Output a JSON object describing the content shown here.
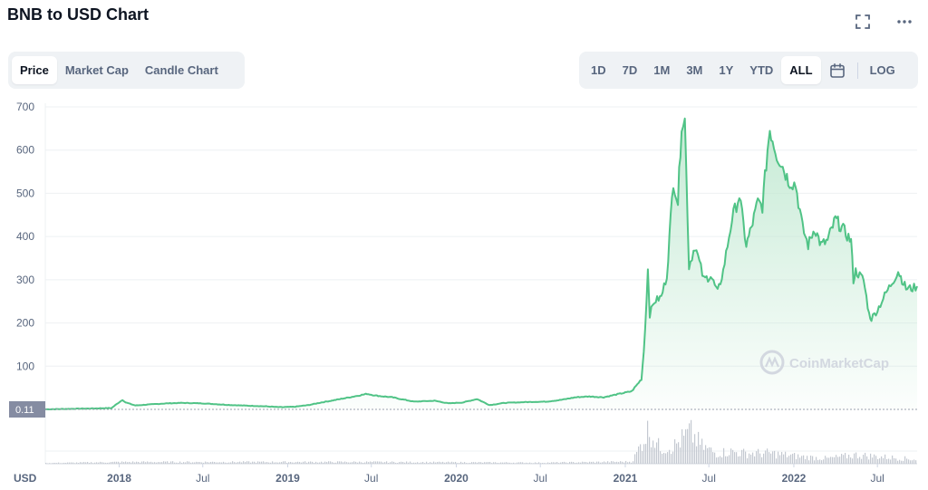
{
  "header": {
    "title": "BNB to USD Chart"
  },
  "top_icons": [
    "fullscreen-icon",
    "more-icon"
  ],
  "tabs_left": [
    {
      "label": "Price",
      "active": true
    },
    {
      "label": "Market Cap",
      "active": false
    },
    {
      "label": "Candle Chart",
      "active": false
    }
  ],
  "ranges": [
    {
      "label": "1D",
      "active": false
    },
    {
      "label": "7D",
      "active": false
    },
    {
      "label": "1M",
      "active": false
    },
    {
      "label": "3M",
      "active": false
    },
    {
      "label": "1Y",
      "active": false
    },
    {
      "label": "YTD",
      "active": false
    },
    {
      "label": "ALL",
      "active": true
    }
  ],
  "calendar_icon": "calendar-icon",
  "log_label": "LOG",
  "current_price_label": "0.11",
  "watermark": "CoinMarketCap",
  "colors": {
    "line": "#50c386",
    "fill_top": "#bfe8d0",
    "grid": "#eef0f3",
    "volume": "#c4c9d1",
    "label_bg": "#858ca2"
  },
  "chart_data": {
    "type": "area",
    "currency_label": "USD",
    "ylim": [
      0,
      700
    ],
    "y_ticks": [
      700,
      600,
      500,
      400,
      300,
      200,
      100
    ],
    "x_ticks": [
      "2018",
      "Jul",
      "2019",
      "Jul",
      "2020",
      "Jul",
      "2021",
      "Jul",
      "2022",
      "Jul"
    ],
    "x_tick_dates": [
      "2018-01-01",
      "2018-07-01",
      "2019-01-01",
      "2019-07-01",
      "2020-01-01",
      "2020-07-01",
      "2021-01-01",
      "2021-07-01",
      "2022-01-01",
      "2022-07-01"
    ],
    "grid": true,
    "series": [
      {
        "points": [
          [
            "2017-07-25",
            0.11
          ],
          [
            "2017-10-01",
            1.5
          ],
          [
            "2017-12-15",
            3
          ],
          [
            "2018-01-08",
            22
          ],
          [
            "2018-01-15",
            16
          ],
          [
            "2018-02-05",
            9
          ],
          [
            "2018-03-01",
            11
          ],
          [
            "2018-04-15",
            14
          ],
          [
            "2018-05-15",
            15
          ],
          [
            "2018-07-01",
            14
          ],
          [
            "2018-09-01",
            10
          ],
          [
            "2018-11-15",
            7
          ],
          [
            "2018-12-15",
            5
          ],
          [
            "2019-01-15",
            6
          ],
          [
            "2019-02-15",
            10
          ],
          [
            "2019-03-15",
            16
          ],
          [
            "2019-04-15",
            22
          ],
          [
            "2019-05-15",
            28
          ],
          [
            "2019-06-22",
            36
          ],
          [
            "2019-07-10",
            32
          ],
          [
            "2019-08-15",
            28
          ],
          [
            "2019-10-01",
            18
          ],
          [
            "2019-11-15",
            20
          ],
          [
            "2019-12-15",
            14
          ],
          [
            "2020-01-15",
            16
          ],
          [
            "2020-02-15",
            24
          ],
          [
            "2020-03-13",
            10
          ],
          [
            "2020-04-15",
            15
          ],
          [
            "2020-06-01",
            17
          ],
          [
            "2020-07-15",
            18
          ],
          [
            "2020-08-15",
            22
          ],
          [
            "2020-09-15",
            28
          ],
          [
            "2020-10-15",
            30
          ],
          [
            "2020-11-15",
            28
          ],
          [
            "2020-12-15",
            35
          ],
          [
            "2021-01-15",
            42
          ],
          [
            "2021-02-05",
            70
          ],
          [
            "2021-02-10",
            135
          ],
          [
            "2021-02-16",
            250
          ],
          [
            "2021-02-19",
            330
          ],
          [
            "2021-02-23",
            220
          ],
          [
            "2021-03-05",
            250
          ],
          [
            "2021-03-20",
            260
          ],
          [
            "2021-04-01",
            310
          ],
          [
            "2021-04-15",
            530
          ],
          [
            "2021-04-25",
            480
          ],
          [
            "2021-05-03",
            665
          ],
          [
            "2021-05-10",
            670
          ],
          [
            "2021-05-19",
            330
          ],
          [
            "2021-06-01",
            380
          ],
          [
            "2021-06-20",
            300
          ],
          [
            "2021-07-05",
            310
          ],
          [
            "2021-07-20",
            270
          ],
          [
            "2021-08-01",
            320
          ],
          [
            "2021-08-20",
            440
          ],
          [
            "2021-09-05",
            495
          ],
          [
            "2021-09-20",
            380
          ],
          [
            "2021-10-01",
            420
          ],
          [
            "2021-10-15",
            480
          ],
          [
            "2021-10-25",
            470
          ],
          [
            "2021-11-05",
            600
          ],
          [
            "2021-11-10",
            650
          ],
          [
            "2021-11-25",
            590
          ],
          [
            "2021-12-05",
            570
          ],
          [
            "2021-12-20",
            530
          ],
          [
            "2022-01-05",
            520
          ],
          [
            "2022-01-20",
            420
          ],
          [
            "2022-02-01",
            380
          ],
          [
            "2022-02-15",
            420
          ],
          [
            "2022-03-01",
            380
          ],
          [
            "2022-03-15",
            390
          ],
          [
            "2022-04-01",
            440
          ],
          [
            "2022-04-15",
            420
          ],
          [
            "2022-05-05",
            390
          ],
          [
            "2022-05-10",
            300
          ],
          [
            "2022-05-15",
            320
          ],
          [
            "2022-06-01",
            300
          ],
          [
            "2022-06-13",
            220
          ],
          [
            "2022-06-18",
            210
          ],
          [
            "2022-07-01",
            230
          ],
          [
            "2022-07-20",
            270
          ],
          [
            "2022-08-05",
            300
          ],
          [
            "2022-08-15",
            320
          ],
          [
            "2022-09-01",
            280
          ],
          [
            "2022-09-15",
            280
          ],
          [
            "2022-09-25",
            285
          ]
        ]
      }
    ],
    "volume": {
      "points": [
        [
          "2017-07-25",
          0.02
        ],
        [
          "2018-01-10",
          0.05
        ],
        [
          "2019-06-20",
          0.05
        ],
        [
          "2020-07-01",
          0.03
        ],
        [
          "2021-01-15",
          0.06
        ],
        [
          "2021-02-20",
          1.0
        ],
        [
          "2021-03-15",
          0.45
        ],
        [
          "2021-04-15",
          0.5
        ],
        [
          "2021-05-12",
          0.8
        ],
        [
          "2021-05-20",
          0.9
        ],
        [
          "2021-06-15",
          0.5
        ],
        [
          "2021-07-15",
          0.3
        ],
        [
          "2021-08-15",
          0.35
        ],
        [
          "2021-09-15",
          0.3
        ],
        [
          "2021-11-10",
          0.3
        ],
        [
          "2022-01-15",
          0.2
        ],
        [
          "2022-03-15",
          0.15
        ],
        [
          "2022-05-12",
          0.25
        ],
        [
          "2022-06-15",
          0.22
        ],
        [
          "2022-09-25",
          0.12
        ]
      ]
    }
  }
}
